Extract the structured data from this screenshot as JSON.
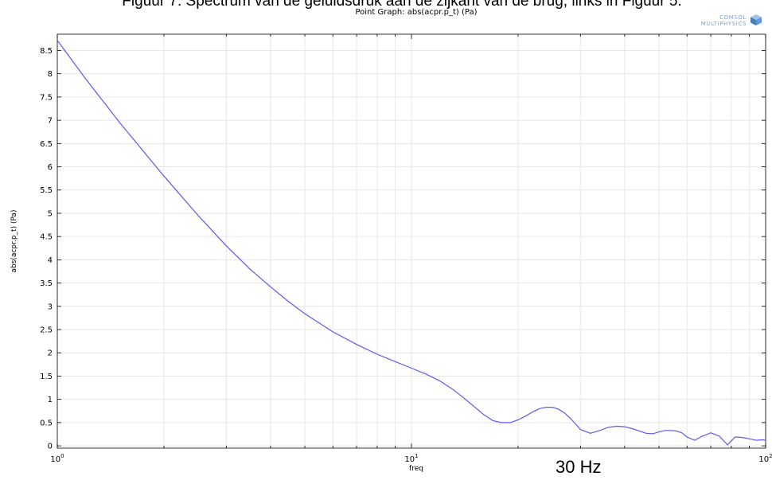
{
  "figure_caption": "Figuur 7: Spectrum van de geluidsdruk aan de zijkant van de brug, links in Figuur 5.",
  "annotation": "30 Hz",
  "logo": {
    "line1": "COMSOL",
    "line2": "MULTIPHYSICS",
    "icon": "comsol-cube-icon"
  },
  "colors": {
    "series": "#5a5aef",
    "grid": "#e6e6e6",
    "axis": "#000000"
  },
  "chart_data": {
    "type": "line",
    "title": "Point Graph: abs(acpr.p_t) (Pa)",
    "xlabel": "freq",
    "ylabel": "abs(acpr.p_t) (Pa)",
    "xscale": "log",
    "xlim": [
      1,
      100
    ],
    "ylim": [
      -0.05,
      8.85
    ],
    "x_ticks": [
      {
        "value": 1,
        "base": "10",
        "exp": "0"
      },
      {
        "value": 10,
        "base": "10",
        "exp": "1"
      },
      {
        "value": 100,
        "base": "10",
        "exp": "2"
      }
    ],
    "y_ticks": [
      "0",
      "0.5",
      "1",
      "1.5",
      "2",
      "2.5",
      "3",
      "3.5",
      "4",
      "4.5",
      "5",
      "5.5",
      "6",
      "6.5",
      "7",
      "7.5",
      "8",
      "8.5"
    ],
    "grid": true,
    "series": [
      {
        "x": [
          1,
          1.2,
          1.5,
          2,
          2.5,
          3,
          3.5,
          4,
          4.5,
          5,
          6,
          7,
          8,
          9,
          10,
          11,
          12,
          13,
          14,
          15,
          16,
          17,
          18,
          19,
          20,
          21,
          22,
          23,
          24,
          25,
          26,
          27,
          28,
          29,
          30,
          32,
          34,
          36,
          38,
          40,
          42,
          44,
          46,
          48,
          50,
          52,
          54,
          56,
          58,
          60,
          63,
          66,
          70,
          74,
          78,
          82,
          86,
          90,
          94,
          98,
          100
        ],
        "y": [
          8.72,
          7.9,
          6.95,
          5.8,
          4.95,
          4.3,
          3.8,
          3.42,
          3.1,
          2.84,
          2.45,
          2.18,
          1.97,
          1.81,
          1.67,
          1.54,
          1.4,
          1.23,
          1.04,
          0.85,
          0.67,
          0.54,
          0.5,
          0.5,
          0.56,
          0.64,
          0.73,
          0.8,
          0.83,
          0.83,
          0.79,
          0.71,
          0.6,
          0.48,
          0.35,
          0.27,
          0.33,
          0.4,
          0.42,
          0.41,
          0.37,
          0.32,
          0.27,
          0.26,
          0.3,
          0.33,
          0.33,
          0.32,
          0.28,
          0.19,
          0.12,
          0.2,
          0.28,
          0.21,
          0.02,
          0.19,
          0.18,
          0.15,
          0.12,
          0.13,
          0.12
        ]
      }
    ]
  }
}
